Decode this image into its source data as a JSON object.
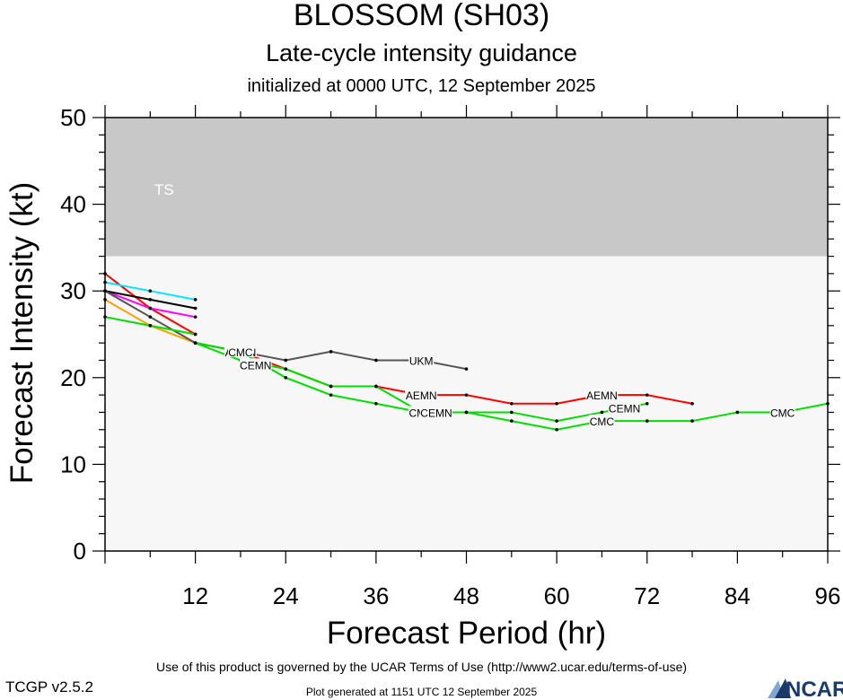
{
  "header": {
    "title": "BLOSSOM (SH03)",
    "subtitle": "Late-cycle intensity guidance",
    "init": "initialized at 0000 UTC, 12 September 2025"
  },
  "footer": {
    "terms": "Use of this product is governed by the UCAR Terms of Use (http://www2.ucar.edu/terms-of-use)",
    "version": "TCGP v2.5.2",
    "generated": "Plot generated at 1151 UTC   12 September 2025",
    "logo_text": "NCAR"
  },
  "colors": {
    "ts_band": "#c8c8c8",
    "plot_bg": "#f7f7f7",
    "logo": "#1b3a6b"
  },
  "chart_data": {
    "type": "line",
    "title": "BLOSSOM (SH03)",
    "xlabel": "Forecast Period (hr)",
    "ylabel": "Forecast Intensity (kt)",
    "xlim": [
      0,
      96
    ],
    "ylim": [
      0,
      50
    ],
    "xticks": [
      12,
      24,
      36,
      48,
      60,
      72,
      84,
      96
    ],
    "yticks": [
      0,
      10,
      20,
      30,
      40,
      50
    ],
    "grid": false,
    "bands": [
      {
        "label": "TS",
        "from": 34,
        "to": 50,
        "color": "#c8c8c8"
      }
    ],
    "series": [
      {
        "name": "",
        "color": "#ff0000",
        "x": [
          0,
          6,
          12
        ],
        "y": [
          32,
          28,
          25
        ]
      },
      {
        "name": "",
        "color": "#00e6ff",
        "x": [
          0,
          6,
          12
        ],
        "y": [
          31,
          30,
          29
        ]
      },
      {
        "name": "",
        "color": "#ff00ff",
        "x": [
          0,
          6,
          12
        ],
        "y": [
          30,
          28,
          27
        ]
      },
      {
        "name": "",
        "color": "#000000",
        "x": [
          0,
          6,
          12
        ],
        "y": [
          30,
          29,
          28
        ]
      },
      {
        "name": "",
        "color": "#ffa000",
        "x": [
          0,
          6,
          12
        ],
        "y": [
          29,
          26,
          24
        ]
      },
      {
        "name": "",
        "color": "#555555",
        "x": [
          0,
          6,
          12
        ],
        "y": [
          30,
          27,
          24
        ]
      },
      {
        "name": "",
        "color": "#00dd00",
        "x": [
          0,
          6,
          12
        ],
        "y": [
          27,
          26,
          25
        ]
      },
      {
        "name": "AEMN",
        "color": "#ff0000",
        "x": [
          12,
          18,
          24,
          30,
          36,
          42,
          48,
          54,
          60,
          66,
          72,
          78
        ],
        "y": [
          24,
          23,
          21,
          19,
          19,
          18,
          18,
          17,
          17,
          18,
          18,
          17
        ],
        "labels": [
          {
            "x": 18,
            "y": 23
          },
          {
            "x": 42,
            "y": 18
          },
          {
            "x": 66,
            "y": 18
          }
        ]
      },
      {
        "name": "UKM",
        "color": "#555555",
        "x": [
          12,
          18,
          24,
          30,
          36,
          42,
          48
        ],
        "y": [
          24,
          23,
          22,
          23,
          22,
          22,
          21
        ],
        "labels": [
          {
            "x": 18,
            "y": 23
          },
          {
            "x": 42,
            "y": 22
          }
        ]
      },
      {
        "name": "CMC",
        "color": "#00dd00",
        "x": [
          12,
          18,
          24,
          30,
          36,
          42,
          48,
          54,
          60,
          66,
          72,
          78,
          84,
          90,
          96
        ],
        "y": [
          24,
          23,
          20,
          18,
          17,
          16,
          16,
          15,
          14,
          15,
          15,
          15,
          16,
          16,
          17
        ],
        "labels": [
          {
            "x": 18,
            "y": 23
          },
          {
            "x": 42,
            "y": 16
          },
          {
            "x": 66,
            "y": 15
          },
          {
            "x": 90,
            "y": 16
          }
        ]
      },
      {
        "name": "CEMN",
        "color": "#00dd00",
        "x": [
          12,
          18,
          24,
          30,
          36,
          42,
          48,
          54,
          60,
          66,
          72
        ],
        "y": [
          24,
          22,
          21,
          19,
          19,
          16,
          16,
          16,
          15,
          16,
          17
        ],
        "labels": [
          {
            "x": 20,
            "y": 21.5
          },
          {
            "x": 44,
            "y": 16
          },
          {
            "x": 69,
            "y": 16.5
          }
        ]
      }
    ]
  }
}
